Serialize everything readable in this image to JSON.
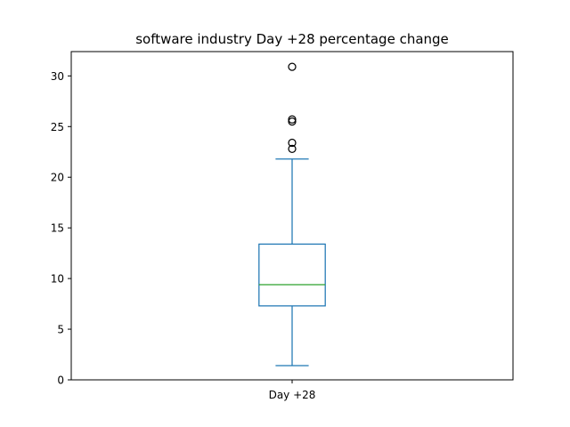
{
  "chart_data": {
    "type": "box",
    "title": "software industry Day +28 percentage change",
    "xlabel": "",
    "ylabel": "",
    "categories": [
      "Day +28"
    ],
    "boxes": [
      {
        "name": "Day +28",
        "whisker_low": 1.4,
        "q1": 7.3,
        "median": 9.4,
        "q3": 13.4,
        "whisker_high": 21.8,
        "outliers": [
          22.8,
          23.4,
          25.5,
          25.7,
          30.9
        ]
      }
    ],
    "ylim": [
      -0.0,
      32.4
    ],
    "yticks": [
      0,
      5,
      10,
      15,
      20,
      25,
      30
    ],
    "grid": false,
    "colors": {
      "box": "#1f77b4",
      "median": "#2ca02c",
      "outlier": "#000000"
    }
  }
}
